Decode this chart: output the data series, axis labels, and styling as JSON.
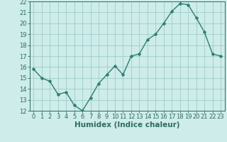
{
  "x": [
    0,
    1,
    2,
    3,
    4,
    5,
    6,
    7,
    8,
    9,
    10,
    11,
    12,
    13,
    14,
    15,
    16,
    17,
    18,
    19,
    20,
    21,
    22,
    23
  ],
  "y": [
    15.8,
    15.0,
    14.7,
    13.5,
    13.7,
    12.5,
    12.0,
    13.2,
    14.5,
    15.3,
    16.1,
    15.3,
    17.0,
    17.2,
    18.5,
    19.0,
    20.0,
    21.1,
    21.8,
    21.7,
    20.5,
    19.2,
    17.2,
    17.0
  ],
  "line_color": "#2e7d6e",
  "marker": "D",
  "markersize": 2.5,
  "bg_color": "#cdecea",
  "grid_color": "#9eccc8",
  "xlabel": "Humidex (Indice chaleur)",
  "ylim": [
    12,
    22
  ],
  "xlim": [
    -0.5,
    23.5
  ],
  "yticks": [
    12,
    13,
    14,
    15,
    16,
    17,
    18,
    19,
    20,
    21,
    22
  ],
  "xticks": [
    0,
    1,
    2,
    3,
    4,
    5,
    6,
    7,
    8,
    9,
    10,
    11,
    12,
    13,
    14,
    15,
    16,
    17,
    18,
    19,
    20,
    21,
    22,
    23
  ],
  "tick_fontsize": 6.0,
  "xlabel_fontsize": 7.5,
  "tick_color": "#2e6b5e",
  "spine_color": "#2e6b5e"
}
